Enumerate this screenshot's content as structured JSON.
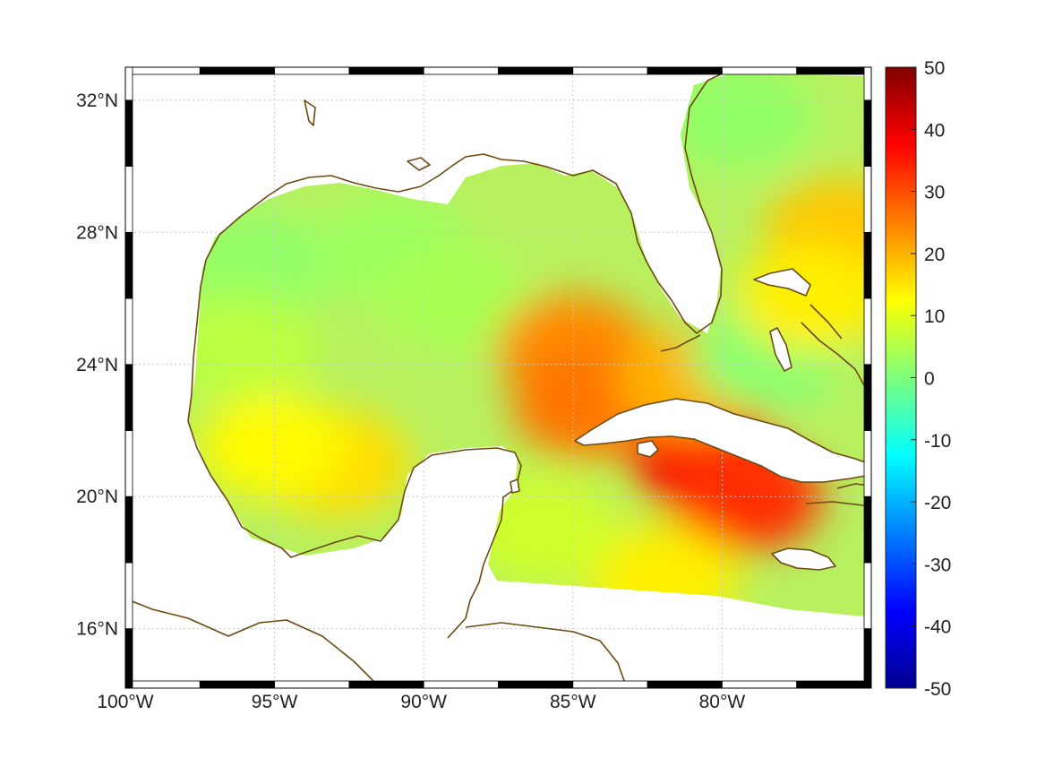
{
  "chart_data": {
    "type": "heatmap",
    "title": "",
    "xlabel": "",
    "ylabel": "",
    "x_ticks": [
      "100°W",
      "95°W",
      "90°W",
      "85°W",
      "80°W"
    ],
    "x_tick_values": [
      -100,
      -95,
      -90,
      -85,
      -80
    ],
    "y_ticks": [
      "32°N",
      "28°N",
      "24°N",
      "20°N",
      "16°N"
    ],
    "y_tick_values": [
      32,
      28,
      24,
      20,
      16
    ],
    "xlim": [
      -100,
      -75
    ],
    "ylim": [
      14.2,
      33
    ],
    "colorbar": {
      "colormap": "jet",
      "range": [
        -50,
        50
      ],
      "ticks": [
        "50",
        "40",
        "30",
        "20",
        "10",
        "0",
        "-10",
        "-20",
        "-30",
        "-40",
        "-50"
      ],
      "tick_values": [
        50,
        40,
        30,
        20,
        10,
        0,
        -10,
        -20,
        -30,
        -40,
        -50
      ]
    },
    "field_features": [
      {
        "lon": -95.5,
        "lat": 27.0,
        "value": 2
      },
      {
        "lon": -91.0,
        "lat": 27.5,
        "value": 3
      },
      {
        "lon": -89.0,
        "lat": 26.0,
        "value": 4
      },
      {
        "lon": -96.0,
        "lat": 24.5,
        "value": 6
      },
      {
        "lon": -93.0,
        "lat": 21.0,
        "value": 16
      },
      {
        "lon": -95.0,
        "lat": 21.5,
        "value": 13
      },
      {
        "lon": -85.0,
        "lat": 24.5,
        "value": 24
      },
      {
        "lon": -84.5,
        "lat": 22.8,
        "value": 26
      },
      {
        "lon": -80.5,
        "lat": 21.2,
        "value": 38
      },
      {
        "lon": -79.2,
        "lat": 20.0,
        "value": 33
      },
      {
        "lon": -81.0,
        "lat": 23.5,
        "value": 20
      },
      {
        "lon": -78.5,
        "lat": 24.3,
        "value": 1
      },
      {
        "lon": -76.0,
        "lat": 28.0,
        "value": 18
      },
      {
        "lon": -79.5,
        "lat": 31.5,
        "value": 2
      },
      {
        "lon": -82.0,
        "lat": 17.5,
        "value": 14
      },
      {
        "lon": -86.0,
        "lat": 19.0,
        "value": 8
      },
      {
        "lon": -77.0,
        "lat": 26.0,
        "value": 14
      }
    ]
  }
}
